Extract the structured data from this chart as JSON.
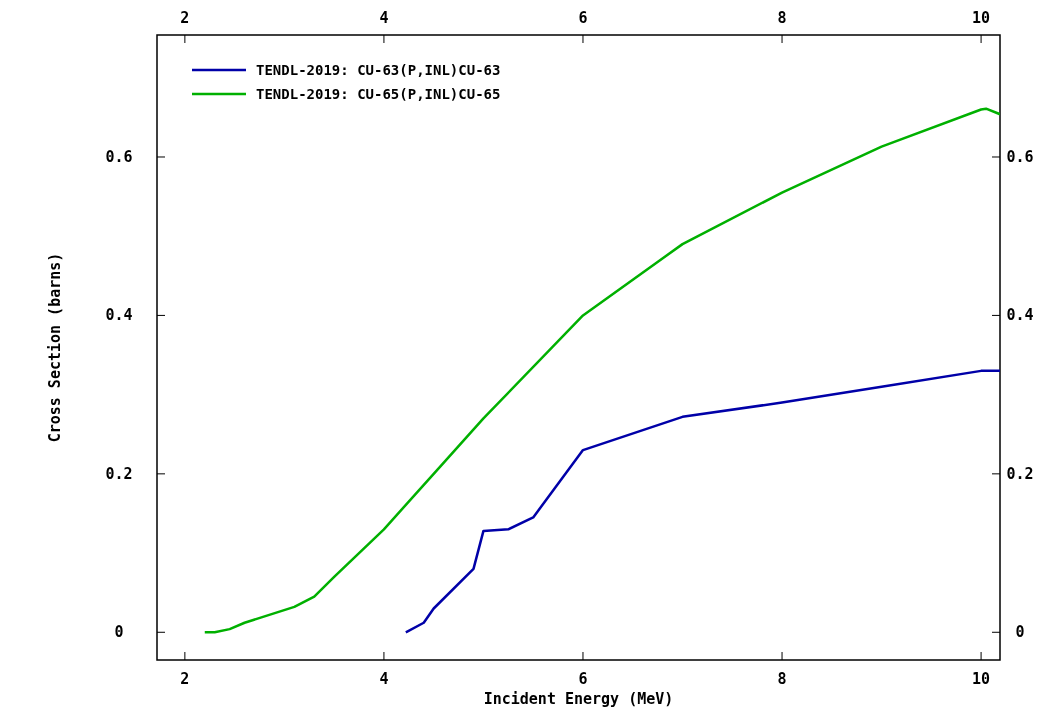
{
  "chart_data": {
    "type": "line",
    "xlabel": "Incident Energy (MeV)",
    "ylabel": "Cross Section (barns)",
    "xlim": [
      1.72,
      10.19
    ],
    "xticks": [
      2,
      4,
      6,
      8,
      10
    ],
    "x2lim": [
      1.72,
      10.19
    ],
    "x2ticks": [
      2,
      4,
      6,
      8,
      10
    ],
    "ylim": [
      -0.035,
      0.754
    ],
    "yticks": [
      0,
      0.2,
      0.4,
      0.6
    ],
    "y2lim": [
      -0.035,
      0.754
    ],
    "y2ticks": [
      0,
      0.2,
      0.4,
      0.6
    ],
    "grid": false,
    "legend": "top left",
    "marker": "none",
    "line_style": "solid",
    "series": [
      {
        "name": "TENDL-2019: CU-63(P,INL)CU-63",
        "color": "#0000a8",
        "x": [
          4.22,
          4.4,
          4.5,
          4.9,
          5.0,
          5.25,
          5.5,
          6,
          7,
          8,
          9,
          10,
          10.19
        ],
        "values": [
          0,
          0.012,
          0.03,
          0.08,
          0.128,
          0.13,
          0.145,
          0.23,
          0.272,
          0.29,
          0.31,
          0.33,
          0.33
        ]
      },
      {
        "name": "TENDL-2019: CU-65(P,INL)CU-65",
        "color": "#00b000",
        "x": [
          2.2,
          2.3,
          2.45,
          2.6,
          3.1,
          3.3,
          3.5,
          4,
          4.5,
          5,
          6,
          7,
          8,
          9,
          10,
          10.05,
          10.19
        ],
        "values": [
          0,
          0,
          0.004,
          0.012,
          0.032,
          0.045,
          0.07,
          0.13,
          0.2,
          0.27,
          0.4,
          0.49,
          0.555,
          0.613,
          0.66,
          0.661,
          0.654
        ]
      }
    ]
  }
}
